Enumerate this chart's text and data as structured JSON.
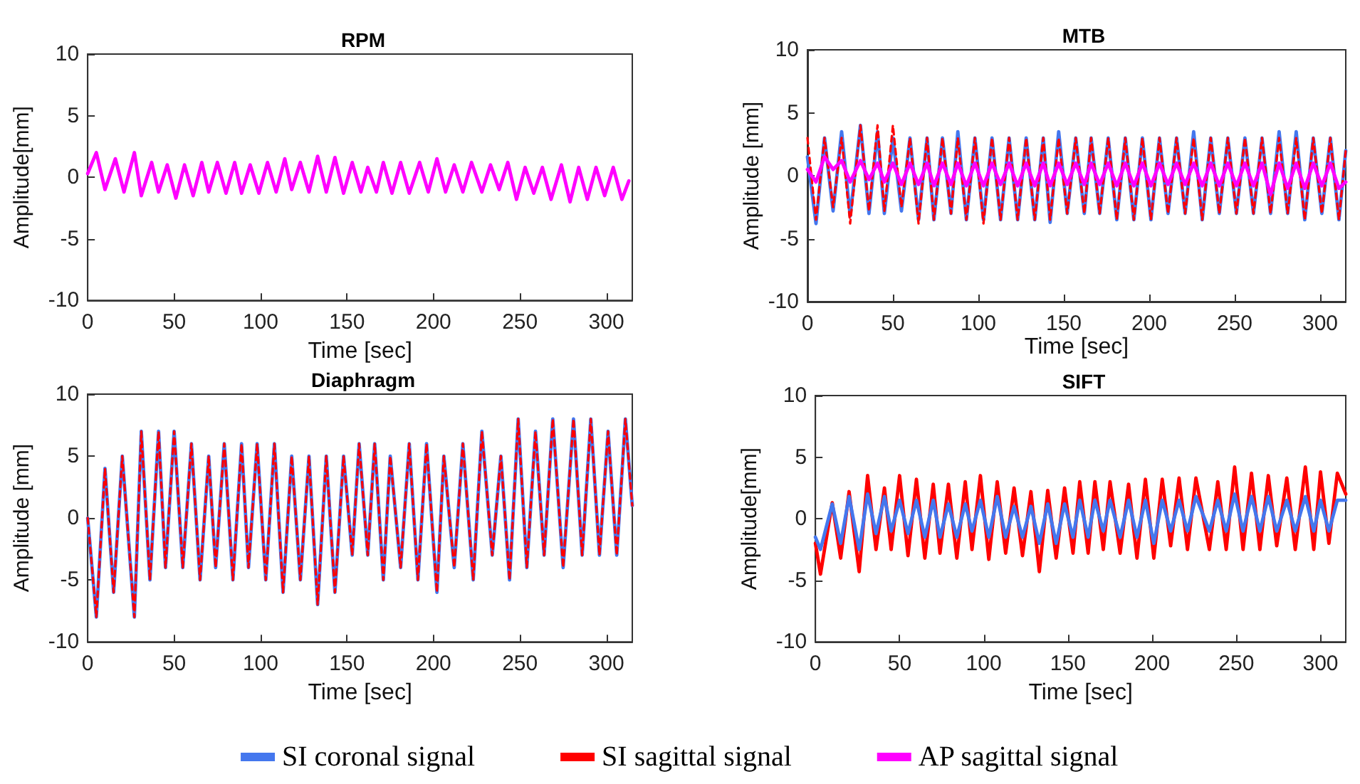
{
  "chart_data": [
    {
      "type": "line",
      "title": "RPM",
      "xlabel": "Time [sec]",
      "ylabel": "Amplitude[mm]",
      "xlim": [
        0,
        315
      ],
      "xticks": [
        0,
        50,
        100,
        150,
        200,
        250,
        300
      ],
      "ylim": [
        -10,
        10
      ],
      "yticks": [
        -10,
        -5,
        0,
        5,
        10
      ],
      "grid": false,
      "legend": false,
      "marker": "none",
      "x": [
        0,
        5,
        10,
        16,
        21,
        27,
        31,
        37,
        41,
        46,
        51,
        56,
        61,
        66,
        70,
        75,
        80,
        85,
        89,
        94,
        99,
        104,
        109,
        114,
        118,
        123,
        128,
        133,
        138,
        143,
        148,
        153,
        158,
        162,
        167,
        171,
        176,
        181,
        186,
        192,
        197,
        202,
        207,
        212,
        217,
        222,
        228,
        233,
        238,
        243,
        248,
        253,
        258,
        263,
        268,
        274,
        279,
        284,
        289,
        294,
        299,
        304,
        309,
        313
      ],
      "series": [
        {
          "color": "#ff00ff",
          "values": [
            0.3,
            2,
            -1,
            1.5,
            -1.2,
            2,
            -1.5,
            1.2,
            -1.2,
            1,
            -1.7,
            1,
            -1.5,
            1.2,
            -1.2,
            1.2,
            -1.3,
            1.2,
            -1.3,
            1,
            -1.3,
            1.2,
            -1.2,
            1.5,
            -1,
            1.2,
            -1.2,
            1.7,
            -1.2,
            1.6,
            -1.3,
            1.2,
            -1.2,
            0.8,
            -1.2,
            1.2,
            -1.3,
            1.2,
            -1.3,
            1.2,
            -1.2,
            1.5,
            -1.2,
            1,
            -1.2,
            1.2,
            -1.2,
            1,
            -1,
            1.2,
            -1.8,
            0.8,
            -1.3,
            0.8,
            -1.8,
            1,
            -2,
            0.8,
            -1.8,
            0.8,
            -1.5,
            0.8,
            -1.8,
            -0.3
          ]
        }
      ]
    },
    {
      "type": "line",
      "title": "MTB",
      "xlabel": "Time [sec]",
      "ylabel": "Amplitude [mm]",
      "xlim": [
        0,
        315
      ],
      "xticks": [
        0,
        50,
        100,
        150,
        200,
        250,
        300
      ],
      "ylim": [
        -10,
        10
      ],
      "yticks": [
        -10,
        -5,
        0,
        5,
        10
      ],
      "grid": false,
      "legend": "bottom",
      "marker": "none",
      "x": [
        0,
        5,
        10,
        15,
        20,
        25,
        31,
        36,
        41,
        45,
        50,
        55,
        60,
        65,
        70,
        74,
        79,
        84,
        88,
        93,
        98,
        103,
        108,
        113,
        118,
        123,
        128,
        133,
        138,
        142,
        147,
        152,
        157,
        162,
        166,
        171,
        176,
        181,
        186,
        191,
        196,
        201,
        206,
        211,
        216,
        221,
        226,
        231,
        236,
        241,
        246,
        251,
        256,
        261,
        266,
        271,
        276,
        281,
        286,
        291,
        296,
        301,
        306,
        311,
        315
      ],
      "series": [
        {
          "name": "SI coronal signal",
          "color": "#4477ee",
          "values": [
            1.5,
            -3.8,
            3,
            -2.8,
            3.5,
            -3.2,
            4,
            -3,
            3.5,
            -3,
            3,
            -2.8,
            3,
            -3.5,
            3,
            -3.5,
            3,
            -3,
            3.5,
            -3.5,
            3,
            -3.5,
            3,
            -3.5,
            3,
            -3.5,
            3,
            -3.5,
            3,
            -3.7,
            3.5,
            -3,
            3,
            -3,
            3,
            -3,
            3,
            -3.5,
            3,
            -3.5,
            3,
            -3.5,
            3,
            -3,
            3,
            -3,
            3.5,
            -3.5,
            3,
            -3,
            3,
            -3,
            3,
            -3,
            3,
            -3,
            3.5,
            -3,
            3.5,
            -3.5,
            3,
            -3,
            3,
            -3.5,
            2
          ]
        },
        {
          "name": "SI sagittal signal",
          "color": "#ff0000",
          "line_style": "dashed",
          "values": [
            3,
            -3.5,
            3,
            -2.5,
            3,
            -3.8,
            4,
            -2.8,
            4,
            -2.8,
            4,
            -2.5,
            3,
            -3.8,
            3,
            -3.5,
            3,
            -3,
            3,
            -3.5,
            3,
            -3.8,
            3,
            -3.5,
            3,
            -3.5,
            3,
            -3.5,
            3,
            -3.5,
            3,
            -3,
            3,
            -3,
            3,
            -3,
            3,
            -3.5,
            3,
            -3.5,
            3,
            -3.5,
            3,
            -3,
            3,
            -3,
            3,
            -3.5,
            3,
            -3,
            3,
            -3,
            3,
            -3,
            3,
            -3,
            3,
            -3,
            3,
            -3.5,
            3,
            -3,
            3,
            -3.5,
            2
          ]
        },
        {
          "name": "AP sagittal signal",
          "color": "#ff00ff",
          "values": [
            0.5,
            -0.5,
            1.5,
            0.5,
            1.2,
            -0.5,
            1.2,
            -0.3,
            1,
            -0.5,
            1,
            -0.7,
            1,
            -0.7,
            1,
            -0.8,
            1,
            -0.7,
            1,
            -0.8,
            1,
            -0.8,
            1,
            -0.7,
            1,
            -0.8,
            1,
            -0.8,
            1,
            -0.8,
            1,
            -0.7,
            1,
            -0.7,
            1,
            -0.7,
            1,
            -0.8,
            1,
            -0.8,
            1,
            -0.8,
            1,
            -0.7,
            1,
            -0.7,
            1,
            -0.8,
            1,
            -0.8,
            1,
            -0.8,
            1,
            -0.8,
            1,
            -1.5,
            1,
            -1,
            1,
            -1,
            1,
            -0.8,
            1,
            -1,
            -0.5
          ]
        }
      ]
    },
    {
      "type": "line",
      "title": "Diaphragm",
      "xlabel": "Time [sec]",
      "ylabel": "Amplitude [mm]",
      "xlim": [
        0,
        315
      ],
      "xticks": [
        0,
        50,
        100,
        150,
        200,
        250,
        300
      ],
      "ylim": [
        -10,
        10
      ],
      "yticks": [
        -10,
        -5,
        0,
        5,
        10
      ],
      "grid": false,
      "legend": false,
      "marker": "none",
      "x": [
        0,
        5,
        10,
        15,
        20,
        27,
        31,
        36,
        41,
        45,
        50,
        55,
        60,
        65,
        70,
        74,
        79,
        84,
        89,
        93,
        98,
        103,
        108,
        113,
        118,
        123,
        128,
        133,
        138,
        143,
        148,
        153,
        157,
        162,
        166,
        171,
        175,
        181,
        186,
        191,
        196,
        202,
        206,
        212,
        217,
        223,
        228,
        234,
        239,
        244,
        249,
        254,
        259,
        264,
        269,
        275,
        281,
        286,
        291,
        296,
        301,
        306,
        311,
        315
      ],
      "series": [
        {
          "color": "#4477ee",
          "values": [
            0,
            -8,
            4,
            -6,
            5,
            -8,
            7,
            -5,
            7,
            -4,
            7,
            -4,
            6,
            -5,
            5,
            -4,
            6,
            -5,
            6,
            -4,
            6,
            -5,
            6,
            -6,
            5,
            -5,
            5,
            -7,
            5,
            -6,
            5,
            -3,
            6,
            -3,
            6,
            -5,
            5,
            -4,
            6,
            -5,
            6,
            -6,
            5,
            -4,
            6,
            -5,
            7,
            -3,
            5,
            -5,
            8,
            -4,
            7,
            -3,
            8,
            -4,
            8,
            -3,
            8,
            -3,
            7,
            -3,
            8,
            1
          ]
        },
        {
          "color": "#ff0000",
          "line_style": "dashed",
          "values": [
            0,
            -8,
            4,
            -6,
            5,
            -8,
            7,
            -5,
            7,
            -4,
            7,
            -4,
            6,
            -5,
            5,
            -4,
            6,
            -5,
            6,
            -4,
            6,
            -5,
            6,
            -6,
            5,
            -5,
            5,
            -7,
            5,
            -6,
            5,
            -3,
            6,
            -3,
            6,
            -5,
            5,
            -4,
            6,
            -5,
            6,
            -6,
            5,
            -4,
            6,
            -5,
            7,
            -3,
            5,
            -5,
            8,
            -4,
            7,
            -3,
            8,
            -4,
            8,
            -3,
            8,
            -3,
            7,
            -3,
            8,
            1
          ]
        }
      ]
    },
    {
      "type": "line",
      "title": "SIFT",
      "xlabel": "Time [sec]",
      "ylabel": "Amplitude[mm]",
      "xlim": [
        0,
        315
      ],
      "xticks": [
        0,
        50,
        100,
        150,
        200,
        250,
        300
      ],
      "ylim": [
        -10,
        10
      ],
      "yticks": [
        -10,
        -5,
        0,
        5,
        10
      ],
      "grid": false,
      "legend": false,
      "marker": "none",
      "x": [
        0,
        3,
        10,
        15,
        20,
        26,
        31,
        36,
        41,
        45,
        50,
        55,
        60,
        65,
        70,
        74,
        79,
        84,
        89,
        93,
        98,
        103,
        108,
        113,
        118,
        123,
        128,
        133,
        138,
        143,
        148,
        153,
        157,
        162,
        166,
        171,
        175,
        181,
        186,
        191,
        196,
        201,
        206,
        211,
        216,
        221,
        226,
        234,
        239,
        244,
        249,
        254,
        259,
        264,
        269,
        274,
        280,
        285,
        291,
        296,
        300,
        305,
        310,
        315
      ],
      "series": [
        {
          "color": "#ff0000",
          "values": [
            -2,
            -4.5,
            1.3,
            -3.2,
            2.2,
            -4.3,
            3.5,
            -2.5,
            2.5,
            -2.5,
            3.5,
            -3,
            3.2,
            -3.2,
            2.8,
            -2.8,
            2.8,
            -3.2,
            3,
            -2.5,
            3.5,
            -3.3,
            3,
            -2.8,
            2.5,
            -3,
            2.2,
            -4.3,
            2.3,
            -3.2,
            2.5,
            -2.8,
            3,
            -2.8,
            3,
            -2.5,
            3,
            -2.8,
            2.8,
            -3.2,
            3.2,
            -3.2,
            3.2,
            -2.2,
            3.3,
            -2.5,
            3.3,
            -2.5,
            3,
            -2.5,
            4.2,
            -2.5,
            3.7,
            -2.5,
            3.5,
            -2.2,
            3.3,
            -2.5,
            4.2,
            -2.5,
            3.8,
            -2,
            3.7,
            2
          ]
        },
        {
          "color": "#4477ee",
          "values": [
            -1.5,
            -2.5,
            1.2,
            -2,
            1.8,
            -2.5,
            2,
            -1.2,
            1.8,
            -1,
            1.5,
            -1.2,
            1.5,
            -1.5,
            1.5,
            -1.5,
            1.2,
            -1.5,
            1.2,
            -1,
            1.5,
            -1.5,
            1.8,
            -1.5,
            1,
            -1.5,
            1,
            -2,
            1.2,
            -2,
            1.2,
            -1.5,
            1.5,
            -1.5,
            1.5,
            -1,
            1.5,
            -1.5,
            1.5,
            -1.5,
            1.5,
            -2,
            1.5,
            -1,
            1.5,
            -1,
            1.8,
            -1,
            1.5,
            -1,
            2,
            -1,
            1.8,
            -1,
            1.8,
            -1,
            1.5,
            -1,
            1.8,
            -1,
            1.5,
            -1,
            1.5,
            1.5
          ]
        }
      ]
    }
  ]
}
